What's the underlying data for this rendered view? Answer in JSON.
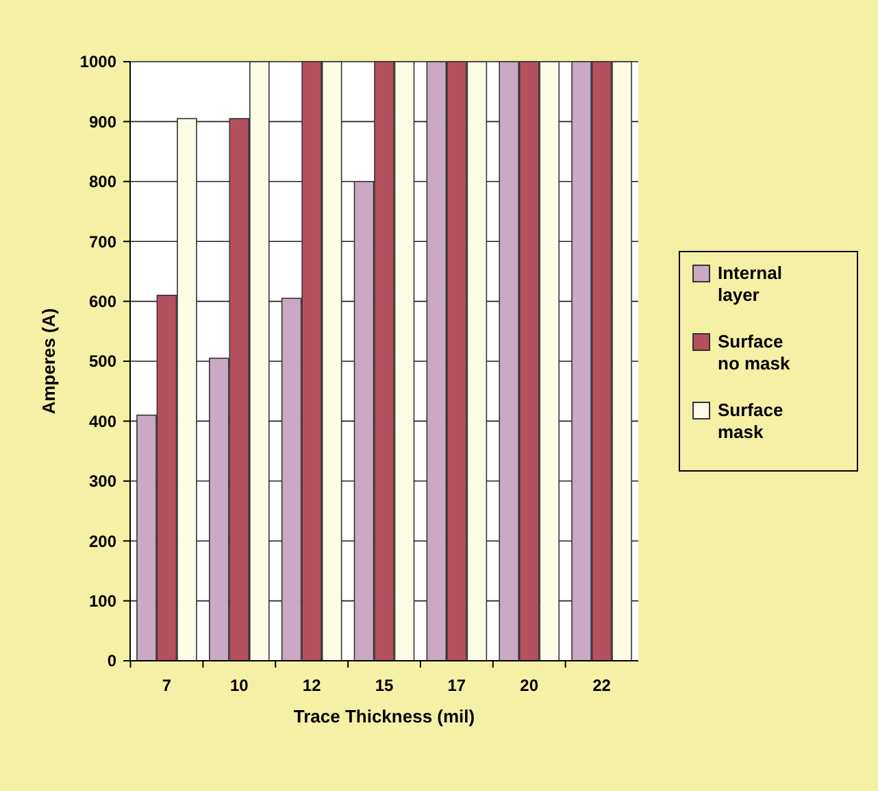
{
  "chart_data": {
    "type": "bar",
    "xlabel": "Trace Thickness (mil)",
    "ylabel": "Amperes (A)",
    "categories": [
      "7",
      "10",
      "12",
      "15",
      "17",
      "20",
      "22"
    ],
    "series": [
      {
        "name": "Internal layer",
        "color": "#c9a9c4",
        "values": [
          410,
          505,
          605,
          800,
          1000,
          1000,
          1000
        ]
      },
      {
        "name": "Surface no mask",
        "color": "#b5505f",
        "values": [
          610,
          905,
          1000,
          1000,
          1000,
          1000,
          1000
        ]
      },
      {
        "name": "Surface mask",
        "color": "#fbfbe6",
        "values": [
          905,
          1000,
          1000,
          1000,
          1000,
          1000,
          1000
        ]
      }
    ],
    "ylim": [
      0,
      1000
    ],
    "yticks": [
      0,
      100,
      200,
      300,
      400,
      500,
      600,
      700,
      800,
      900,
      1000
    ],
    "grid": "y",
    "legend": "right"
  }
}
